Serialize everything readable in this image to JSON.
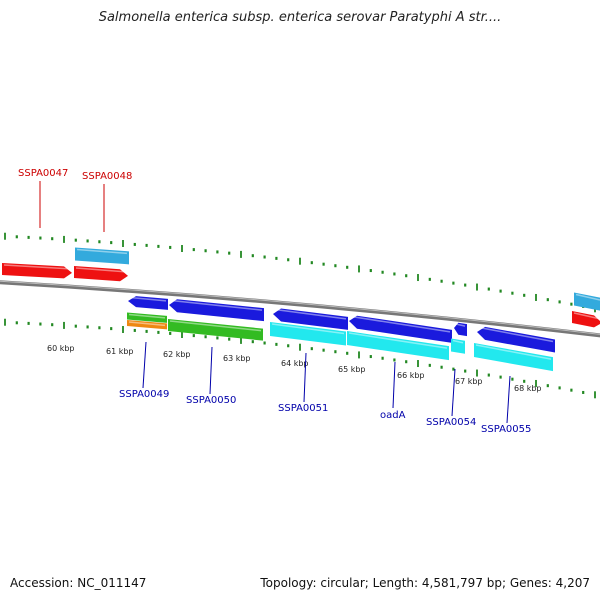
{
  "header": {
    "title": "Salmonella enterica subsp. enterica serovar Paratyphi A str...."
  },
  "footer": {
    "accession": "Accession: NC_011147",
    "topology": "Topology: circular; Length: 4,581,797 bp; Genes: 4,207"
  },
  "colors": {
    "red": "#ee1111",
    "sky": "#33aadd",
    "blue": "#1a1add",
    "cyan": "#22e8ee",
    "green": "#33bb22",
    "orange": "#ee8811",
    "tick": "#228822",
    "backbone": "#888888",
    "label_red": "#cc0000",
    "label_blue": "#0000aa"
  },
  "scale_labels": [
    "60 kbp",
    "61 kbp",
    "62 kbp",
    "63 kbp",
    "64 kbp",
    "65 kbp",
    "66 kbp",
    "67 kbp",
    "68 kbp"
  ],
  "gene_labels_top": [
    "SSPA0047",
    "SSPA0048"
  ],
  "gene_labels_bottom": [
    "SSPA0049",
    "SSPA0050",
    "SSPA0051",
    "oadA",
    "SSPA0054",
    "SSPA0055"
  ]
}
